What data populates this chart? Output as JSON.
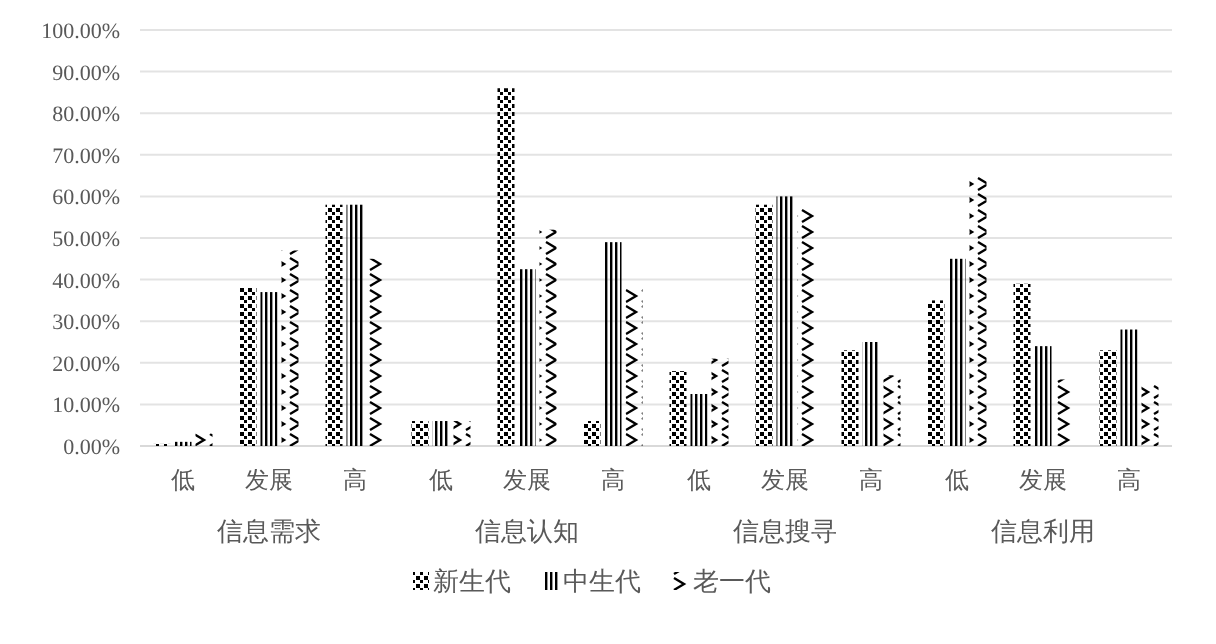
{
  "chart_data": {
    "type": "bar",
    "categories": [
      "低",
      "发展",
      "高",
      "低",
      "发展",
      "高",
      "低",
      "发展",
      "高",
      "低",
      "发展",
      "高"
    ],
    "annotations": [
      "信息需求",
      "信息认知",
      "信息搜寻",
      "信息利用"
    ],
    "series": [
      {
        "name": "新生代",
        "color": "#000000",
        "values": [
          0.5,
          38,
          58,
          6,
          86,
          6,
          18,
          58,
          23,
          35,
          39,
          23
        ]
      },
      {
        "name": "中生代",
        "color": "#000000",
        "values": [
          1,
          37,
          58,
          6,
          42.5,
          49,
          12.5,
          60,
          25,
          45,
          24,
          28
        ]
      },
      {
        "name": "老一代",
        "color": "#000000",
        "values": [
          3,
          47,
          45,
          6,
          52,
          38,
          21,
          57,
          17,
          65,
          16,
          15
        ]
      }
    ],
    "ylim": [
      0,
      100
    ],
    "yticks": [
      {
        "value": 0,
        "label": "0.00%"
      },
      {
        "value": 10,
        "label": "10.00%"
      },
      {
        "value": 20,
        "label": "20.00%"
      },
      {
        "value": 30,
        "label": "30.00%"
      },
      {
        "value": 40,
        "label": "40.00%"
      },
      {
        "value": 50,
        "label": "50.00%"
      },
      {
        "value": 60,
        "label": "60.00%"
      },
      {
        "value": 70,
        "label": "70.00%"
      },
      {
        "value": 80,
        "label": "80.00%"
      },
      {
        "value": 90,
        "label": "90.00%"
      },
      {
        "value": 100,
        "label": "100.00%"
      }
    ],
    "grid": "y",
    "legend": "bottom"
  }
}
